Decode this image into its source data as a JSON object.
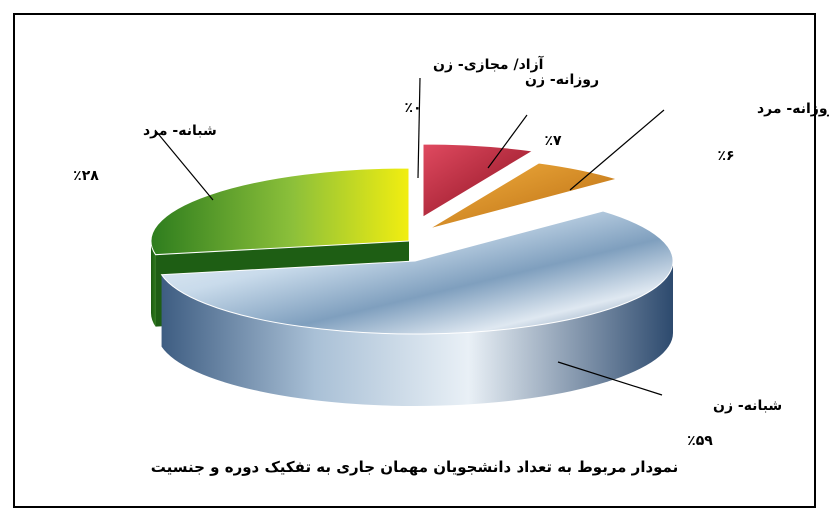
{
  "chart_data": {
    "type": "pie",
    "title": "نمودار مربوط به تعداد دانشجویان مهمان جاری به تفکیک دوره و جنسیت",
    "slices": [
      {
        "label": "آزاد/ مجازی- زن",
        "value": 0,
        "value_label": "٪۰",
        "color": "#ffffff"
      },
      {
        "label": "روزانه- زن",
        "value": 7,
        "value_label": "٪۷",
        "color": "#c0283c"
      },
      {
        "label": "روزانه- مرد",
        "value": 6,
        "value_label": "٪۶",
        "color": "#e0961e"
      },
      {
        "label": "شبانه- زن",
        "value": 59,
        "value_label": "٪۵۹",
        "color": "#5a86b4"
      },
      {
        "label": "شبانه- مرد",
        "value": 28,
        "value_label": "٪۲۸",
        "color": "#7ab830"
      }
    ],
    "legend": "none"
  }
}
